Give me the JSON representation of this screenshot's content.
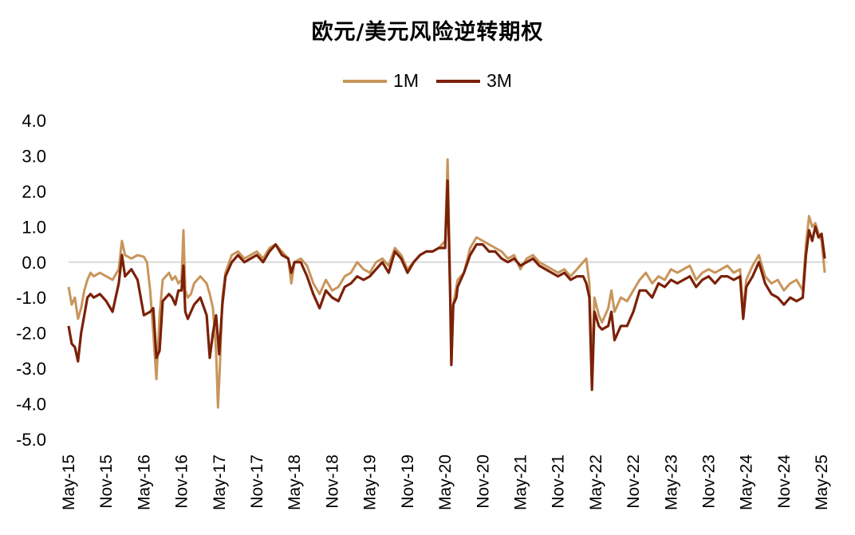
{
  "chart_data": {
    "type": "line",
    "title": "欧元/美元风险逆转期权",
    "xlabel": "",
    "ylabel": "",
    "ylim": [
      -5.0,
      4.0
    ],
    "yticks": [
      "4.0",
      "3.0",
      "2.0",
      "1.0",
      "0.0",
      "-1.0",
      "-2.0",
      "-3.0",
      "-4.0",
      "-5.0"
    ],
    "xticks": [
      "May-15",
      "Nov-15",
      "May-16",
      "Nov-16",
      "May-17",
      "Nov-17",
      "May-18",
      "Nov-18",
      "May-19",
      "Nov-19",
      "May-20",
      "Nov-20",
      "May-21",
      "Nov-21",
      "May-22",
      "Nov-22",
      "May-23",
      "Nov-23",
      "May-24",
      "Nov-24",
      "May-25"
    ],
    "x_range_months": [
      0,
      121
    ],
    "grid": false,
    "zero_line": true,
    "legend_position": "top-center",
    "series": [
      {
        "name": "1M",
        "color": "#C8955B",
        "points": [
          [
            0,
            -0.7
          ],
          [
            0.5,
            -1.2
          ],
          [
            1,
            -1.0
          ],
          [
            1.5,
            -1.6
          ],
          [
            2,
            -1.3
          ],
          [
            2.5,
            -0.8
          ],
          [
            3,
            -0.5
          ],
          [
            3.5,
            -0.3
          ],
          [
            4,
            -0.4
          ],
          [
            5,
            -0.3
          ],
          [
            6,
            -0.4
          ],
          [
            7,
            -0.5
          ],
          [
            8,
            -0.2
          ],
          [
            8.5,
            0.6
          ],
          [
            9,
            0.2
          ],
          [
            10,
            0.1
          ],
          [
            11,
            0.2
          ],
          [
            12,
            0.15
          ],
          [
            12.5,
            0.0
          ],
          [
            13,
            -0.8
          ],
          [
            13.5,
            -2.0
          ],
          [
            14,
            -3.3
          ],
          [
            14.5,
            -1.5
          ],
          [
            15,
            -0.5
          ],
          [
            16,
            -0.3
          ],
          [
            16.5,
            -0.5
          ],
          [
            17,
            -0.4
          ],
          [
            17.5,
            -0.6
          ],
          [
            18,
            -0.5
          ],
          [
            18.3,
            0.9
          ],
          [
            18.6,
            -0.8
          ],
          [
            19,
            -1.0
          ],
          [
            19.5,
            -0.9
          ],
          [
            20,
            -0.6
          ],
          [
            21,
            -0.4
          ],
          [
            22,
            -0.6
          ],
          [
            22.5,
            -0.9
          ],
          [
            23,
            -1.3
          ],
          [
            23.5,
            -2.5
          ],
          [
            23.8,
            -4.1
          ],
          [
            24.1,
            -3.0
          ],
          [
            24.5,
            -1.0
          ],
          [
            25,
            -0.3
          ],
          [
            26,
            0.2
          ],
          [
            27,
            0.3
          ],
          [
            28,
            0.1
          ],
          [
            29,
            0.2
          ],
          [
            30,
            0.3
          ],
          [
            31,
            0.1
          ],
          [
            32,
            0.4
          ],
          [
            33,
            0.5
          ],
          [
            34,
            0.3
          ],
          [
            35,
            0.1
          ],
          [
            35.5,
            -0.6
          ],
          [
            36,
            0.0
          ],
          [
            37,
            0.1
          ],
          [
            38,
            -0.1
          ],
          [
            39,
            -0.6
          ],
          [
            40,
            -0.9
          ],
          [
            41,
            -0.5
          ],
          [
            42,
            -0.8
          ],
          [
            43,
            -0.7
          ],
          [
            44,
            -0.4
          ],
          [
            45,
            -0.3
          ],
          [
            46,
            0.0
          ],
          [
            47,
            -0.2
          ],
          [
            48,
            -0.3
          ],
          [
            49,
            0.0
          ],
          [
            50,
            0.1
          ],
          [
            51,
            -0.1
          ],
          [
            52,
            0.4
          ],
          [
            53,
            0.2
          ],
          [
            54,
            -0.2
          ],
          [
            55,
            0.0
          ],
          [
            56,
            0.2
          ],
          [
            57,
            0.3
          ],
          [
            58,
            0.3
          ],
          [
            59,
            0.4
          ],
          [
            60,
            0.6
          ],
          [
            60.4,
            2.9
          ],
          [
            60.8,
            -0.6
          ],
          [
            61,
            -2.9
          ],
          [
            61.3,
            -1.2
          ],
          [
            61.8,
            -0.7
          ],
          [
            62,
            -0.5
          ],
          [
            63,
            -0.3
          ],
          [
            64,
            0.4
          ],
          [
            65,
            0.7
          ],
          [
            66,
            0.6
          ],
          [
            67,
            0.5
          ],
          [
            68,
            0.4
          ],
          [
            69,
            0.3
          ],
          [
            70,
            0.1
          ],
          [
            71,
            0.2
          ],
          [
            72,
            -0.2
          ],
          [
            73,
            0.1
          ],
          [
            74,
            0.2
          ],
          [
            75,
            0.0
          ],
          [
            76,
            -0.1
          ],
          [
            77,
            -0.2
          ],
          [
            78,
            -0.3
          ],
          [
            79,
            -0.2
          ],
          [
            80,
            -0.4
          ],
          [
            81,
            -0.2
          ],
          [
            82,
            0.0
          ],
          [
            82.5,
            0.1
          ],
          [
            83,
            -0.6
          ],
          [
            83.4,
            -3.0
          ],
          [
            83.8,
            -1.0
          ],
          [
            84.5,
            -1.5
          ],
          [
            85,
            -1.7
          ],
          [
            86,
            -1.3
          ],
          [
            86.5,
            -0.8
          ],
          [
            87,
            -1.4
          ],
          [
            88,
            -1.0
          ],
          [
            89,
            -1.1
          ],
          [
            90,
            -0.8
          ],
          [
            91,
            -0.5
          ],
          [
            92,
            -0.3
          ],
          [
            93,
            -0.6
          ],
          [
            94,
            -0.4
          ],
          [
            95,
            -0.5
          ],
          [
            96,
            -0.2
          ],
          [
            97,
            -0.3
          ],
          [
            98,
            -0.2
          ],
          [
            99,
            -0.1
          ],
          [
            100,
            -0.5
          ],
          [
            101,
            -0.3
          ],
          [
            102,
            -0.2
          ],
          [
            103,
            -0.3
          ],
          [
            104,
            -0.2
          ],
          [
            105,
            -0.1
          ],
          [
            106,
            -0.3
          ],
          [
            107,
            -0.2
          ],
          [
            107.5,
            -1.4
          ],
          [
            108,
            -0.5
          ],
          [
            109,
            -0.1
          ],
          [
            110,
            0.2
          ],
          [
            111,
            -0.4
          ],
          [
            112,
            -0.6
          ],
          [
            113,
            -0.5
          ],
          [
            114,
            -0.8
          ],
          [
            115,
            -0.6
          ],
          [
            116,
            -0.5
          ],
          [
            117,
            -0.8
          ],
          [
            117.5,
            0.5
          ],
          [
            118,
            1.3
          ],
          [
            118.5,
            1.0
          ],
          [
            119,
            1.1
          ],
          [
            119.5,
            0.8
          ],
          [
            120,
            0.6
          ],
          [
            120.5,
            -0.3
          ]
        ]
      },
      {
        "name": "3M",
        "color": "#7B2108",
        "points": [
          [
            0,
            -1.8
          ],
          [
            0.5,
            -2.3
          ],
          [
            1,
            -2.4
          ],
          [
            1.5,
            -2.8
          ],
          [
            2,
            -2.0
          ],
          [
            2.5,
            -1.5
          ],
          [
            3,
            -1.0
          ],
          [
            3.5,
            -0.9
          ],
          [
            4,
            -1.0
          ],
          [
            5,
            -0.9
          ],
          [
            6,
            -1.1
          ],
          [
            7,
            -1.4
          ],
          [
            8,
            -0.6
          ],
          [
            8.5,
            0.2
          ],
          [
            9,
            -0.4
          ],
          [
            10,
            -0.2
          ],
          [
            11,
            -0.5
          ],
          [
            12,
            -1.5
          ],
          [
            13,
            -1.4
          ],
          [
            13.5,
            -1.3
          ],
          [
            14,
            -2.7
          ],
          [
            14.5,
            -2.5
          ],
          [
            15,
            -1.1
          ],
          [
            16,
            -0.9
          ],
          [
            16.5,
            -1.0
          ],
          [
            17,
            -1.2
          ],
          [
            17.5,
            -0.8
          ],
          [
            18,
            -0.8
          ],
          [
            18.3,
            -0.1
          ],
          [
            18.6,
            -1.4
          ],
          [
            19,
            -1.6
          ],
          [
            19.5,
            -1.4
          ],
          [
            20,
            -1.2
          ],
          [
            21,
            -1.0
          ],
          [
            22,
            -1.5
          ],
          [
            22.5,
            -2.7
          ],
          [
            23,
            -2.0
          ],
          [
            23.5,
            -1.5
          ],
          [
            24,
            -2.6
          ],
          [
            24.5,
            -1.2
          ],
          [
            25,
            -0.4
          ],
          [
            26,
            0.0
          ],
          [
            27,
            0.2
          ],
          [
            28,
            0.0
          ],
          [
            29,
            0.1
          ],
          [
            30,
            0.2
          ],
          [
            31,
            0.0
          ],
          [
            32,
            0.3
          ],
          [
            33,
            0.5
          ],
          [
            34,
            0.2
          ],
          [
            35,
            0.1
          ],
          [
            35.5,
            -0.3
          ],
          [
            36,
            0.0
          ],
          [
            37,
            0.0
          ],
          [
            38,
            -0.4
          ],
          [
            39,
            -0.9
          ],
          [
            40,
            -1.3
          ],
          [
            41,
            -0.8
          ],
          [
            42,
            -1.0
          ],
          [
            43,
            -1.1
          ],
          [
            44,
            -0.7
          ],
          [
            45,
            -0.6
          ],
          [
            46,
            -0.4
          ],
          [
            47,
            -0.5
          ],
          [
            48,
            -0.4
          ],
          [
            49,
            -0.2
          ],
          [
            50,
            0.0
          ],
          [
            51,
            -0.3
          ],
          [
            52,
            0.3
          ],
          [
            53,
            0.1
          ],
          [
            54,
            -0.3
          ],
          [
            55,
            0.0
          ],
          [
            56,
            0.2
          ],
          [
            57,
            0.3
          ],
          [
            58,
            0.3
          ],
          [
            59,
            0.4
          ],
          [
            60,
            0.4
          ],
          [
            60.4,
            2.3
          ],
          [
            60.8,
            -0.9
          ],
          [
            61,
            -2.9
          ],
          [
            61.3,
            -1.2
          ],
          [
            61.8,
            -1.0
          ],
          [
            62,
            -0.7
          ],
          [
            63,
            -0.3
          ],
          [
            64,
            0.2
          ],
          [
            65,
            0.5
          ],
          [
            66,
            0.5
          ],
          [
            67,
            0.3
          ],
          [
            68,
            0.3
          ],
          [
            69,
            0.1
          ],
          [
            70,
            0.0
          ],
          [
            71,
            0.1
          ],
          [
            72,
            -0.1
          ],
          [
            73,
            0.0
          ],
          [
            74,
            0.1
          ],
          [
            75,
            -0.1
          ],
          [
            76,
            -0.2
          ],
          [
            77,
            -0.3
          ],
          [
            78,
            -0.4
          ],
          [
            79,
            -0.3
          ],
          [
            80,
            -0.5
          ],
          [
            81,
            -0.4
          ],
          [
            82,
            -0.4
          ],
          [
            82.5,
            -0.6
          ],
          [
            83,
            -1.0
          ],
          [
            83.4,
            -3.6
          ],
          [
            83.8,
            -1.4
          ],
          [
            84.5,
            -1.8
          ],
          [
            85,
            -1.9
          ],
          [
            86,
            -1.8
          ],
          [
            86.5,
            -1.4
          ],
          [
            87,
            -2.2
          ],
          [
            88,
            -1.8
          ],
          [
            89,
            -1.8
          ],
          [
            90,
            -1.4
          ],
          [
            91,
            -0.8
          ],
          [
            92,
            -0.8
          ],
          [
            93,
            -1.0
          ],
          [
            94,
            -0.6
          ],
          [
            95,
            -0.7
          ],
          [
            96,
            -0.5
          ],
          [
            97,
            -0.6
          ],
          [
            98,
            -0.5
          ],
          [
            99,
            -0.4
          ],
          [
            100,
            -0.7
          ],
          [
            101,
            -0.5
          ],
          [
            102,
            -0.4
          ],
          [
            103,
            -0.6
          ],
          [
            104,
            -0.4
          ],
          [
            105,
            -0.4
          ],
          [
            106,
            -0.5
          ],
          [
            107,
            -0.4
          ],
          [
            107.5,
            -1.6
          ],
          [
            108,
            -0.7
          ],
          [
            109,
            -0.4
          ],
          [
            110,
            0.0
          ],
          [
            111,
            -0.6
          ],
          [
            112,
            -0.9
          ],
          [
            113,
            -1.0
          ],
          [
            114,
            -1.2
          ],
          [
            115,
            -1.0
          ],
          [
            116,
            -1.1
          ],
          [
            117,
            -1.0
          ],
          [
            117.5,
            0.2
          ],
          [
            118,
            0.9
          ],
          [
            118.5,
            0.6
          ],
          [
            119,
            1.0
          ],
          [
            119.5,
            0.7
          ],
          [
            120,
            0.8
          ],
          [
            120.5,
            0.1
          ]
        ]
      }
    ]
  }
}
